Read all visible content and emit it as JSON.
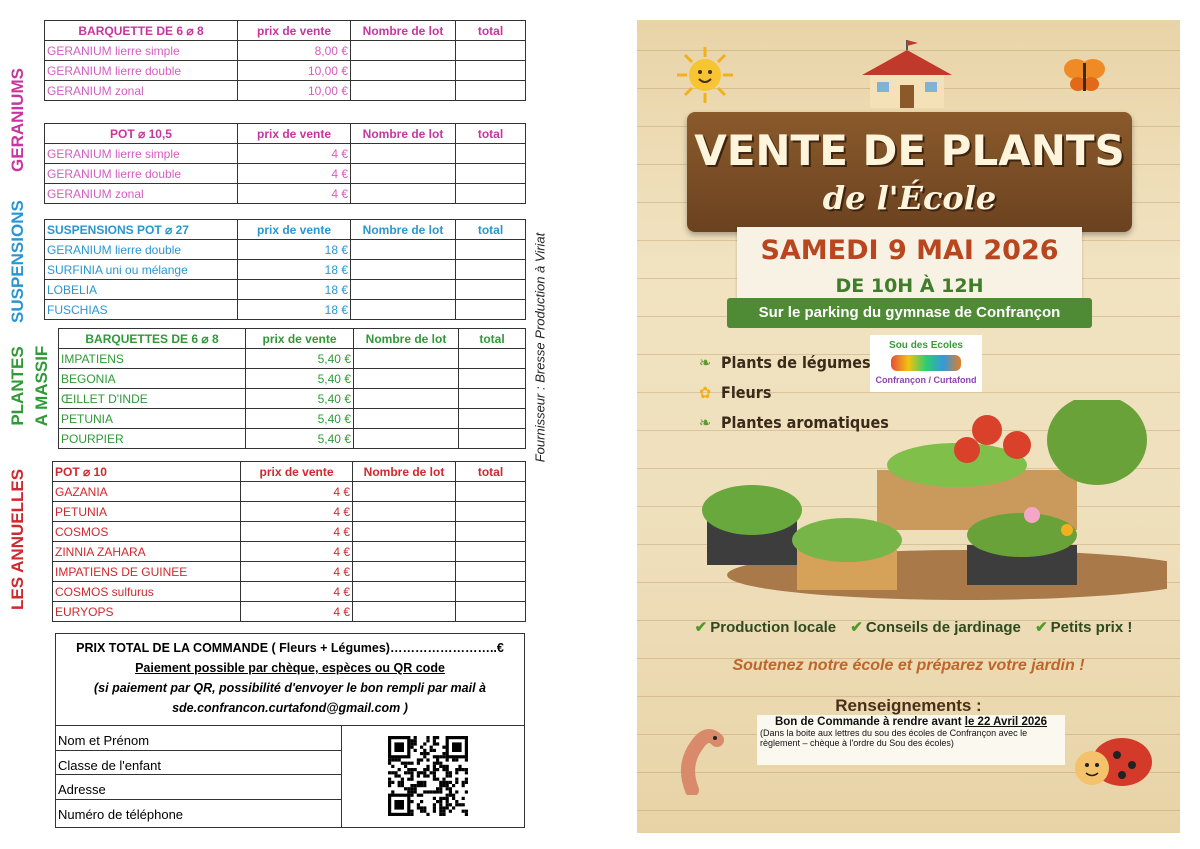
{
  "colors": {
    "geraniums": "#c8359e",
    "geraniums_text": "#d35ec0",
    "suspensions": "#2a96d0",
    "massif": "#2f9a36",
    "annuelles": "#d0282e"
  },
  "section_labels": {
    "geraniums": "GERANIUMS",
    "suspensions": "SUSPENSIONS",
    "massif_1": "PLANTES",
    "massif_2": "A MASSIF",
    "annuelles": "LES ANNUELLES"
  },
  "supplier": "Fournisseur : Bresse Production à Viriat",
  "tables": [
    {
      "header": [
        "BARQUETTE DE 6 ⌀ 8",
        "prix de vente",
        "Nombre de lot",
        "total"
      ],
      "rows": [
        [
          "GERANIUM lierre simple",
          "8,00 €"
        ],
        [
          "GERANIUM lierre double",
          "10,00 €"
        ],
        [
          "GERANIUM zonal",
          "10,00 €"
        ]
      ]
    },
    {
      "header": [
        "POT ⌀ 10,5",
        "prix de vente",
        "Nombre de lot",
        "total"
      ],
      "rows": [
        [
          "GERANIUM lierre simple",
          "4 €"
        ],
        [
          "GERANIUM lierre double",
          "4 €"
        ],
        [
          "GERANIUM zonal",
          "4 €"
        ]
      ]
    },
    {
      "header": [
        "SUSPENSIONS POT ⌀ 27",
        "prix de vente",
        "Nombre de lot",
        "total"
      ],
      "rows": [
        [
          "GERANIUM lierre double",
          "18 €"
        ],
        [
          "SURFINIA uni ou mélange",
          "18 €"
        ],
        [
          "LOBELIA",
          "18 €"
        ],
        [
          "FUSCHIAS",
          "18 €"
        ]
      ]
    },
    {
      "header": [
        "BARQUETTES DE 6 ⌀ 8",
        "prix de vente",
        "Nombre de lot",
        "total"
      ],
      "rows": [
        [
          "IMPATIENS",
          "5,40 €"
        ],
        [
          "BEGONIA",
          "5,40 €"
        ],
        [
          "ŒILLET D'INDE",
          "5,40 €"
        ],
        [
          "PETUNIA",
          "5,40 €"
        ],
        [
          "POURPIER",
          "5,40 €"
        ]
      ]
    },
    {
      "header": [
        "POT ⌀ 10",
        "prix de vente",
        "Nombre de lot",
        "total"
      ],
      "rows": [
        [
          "GAZANIA",
          "4 €"
        ],
        [
          "PETUNIA",
          "4 €"
        ],
        [
          "COSMOS",
          "4 €"
        ],
        [
          "ZINNIA ZAHARA",
          "4 €"
        ],
        [
          "IMPATIENS DE GUINEE",
          "4 €"
        ],
        [
          "COSMOS sulfurus",
          "4 €"
        ],
        [
          "EURYOPS",
          "4 €"
        ]
      ]
    }
  ],
  "order": {
    "total_line": "PRIX TOTAL DE LA COMMANDE ( Fleurs + Légumes)……………………..€",
    "payment": "Paiement possible par chèque, espèces ou QR code",
    "qr_note": "(si paiement par QR, possibilité d'envoyer le bon rempli par mail à",
    "email": "sde.confrancon.curtafond@gmail.com )",
    "fields": [
      "Nom et Prénom",
      "Classe de l'enfant",
      "Adresse",
      "Numéro de téléphone"
    ]
  },
  "poster": {
    "title": "VENTE DE PLANTS",
    "subtitle": "de l'École",
    "date": "SAMEDI 9 MAI 2026",
    "hours": "DE 10H À 12H",
    "location": "Sur le parking du gymnase de Confrançon",
    "logo": {
      "top": "Sou des Ecoles",
      "bottom": "Confrançon / Curtafond"
    },
    "features": [
      {
        "icon": "leaf-icon",
        "label": "Plants de légumes"
      },
      {
        "icon": "flower-icon",
        "label": "Fleurs"
      },
      {
        "icon": "leaf-icon",
        "label": "Plantes aromatiques"
      }
    ],
    "checks": [
      "Production locale",
      "Conseils de jardinage",
      "Petits prix !"
    ],
    "slogan": "Soutenez notre école et préparez votre jardin !",
    "info_title": "Renseignements :",
    "deadline_prefix": "Bon de Commande à rendre avant ",
    "deadline_date": "le 22 Avril 2026",
    "deadline_note": "(Dans la boite aux lettres du sou des écoles de Confrançon avec le règlement – chèque à l'ordre du Sou des écoles)"
  }
}
